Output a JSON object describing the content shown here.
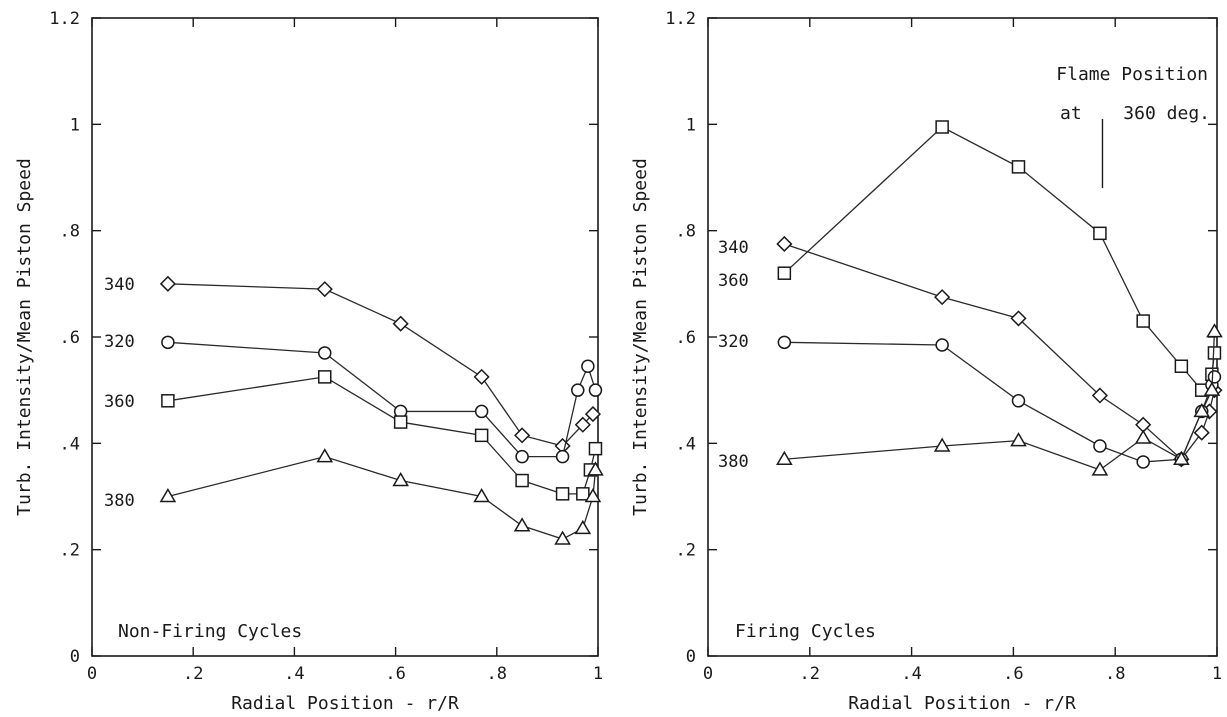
{
  "chart_data": [
    {
      "type": "line",
      "panel_label": "Non-Firing Cycles",
      "xlabel": "Radial Position - r/R",
      "ylabel": "Turb. Intensity/Mean Piston Speed",
      "xlim": [
        0,
        1
      ],
      "ylim": [
        0,
        1.2
      ],
      "x_ticks": [
        "0",
        ".2",
        ".4",
        ".6",
        ".8",
        "1"
      ],
      "y_ticks": [
        "0",
        ".2",
        ".4",
        ".6",
        ".8",
        "1",
        "1.2"
      ],
      "grid": false,
      "series": [
        {
          "name": "340",
          "marker": "diamond",
          "x": [
            0.15,
            0.46,
            0.61,
            0.77,
            0.85,
            0.93,
            0.97,
            0.99
          ],
          "y": [
            0.7,
            0.69,
            0.625,
            0.525,
            0.415,
            0.395,
            0.435,
            0.455
          ]
        },
        {
          "name": "320",
          "marker": "circle",
          "x": [
            0.15,
            0.46,
            0.61,
            0.77,
            0.85,
            0.93,
            0.96,
            0.98,
            0.995
          ],
          "y": [
            0.59,
            0.57,
            0.46,
            0.46,
            0.375,
            0.375,
            0.5,
            0.545,
            0.5
          ]
        },
        {
          "name": "360",
          "marker": "square",
          "x": [
            0.15,
            0.46,
            0.61,
            0.77,
            0.85,
            0.93,
            0.97,
            0.985,
            0.995
          ],
          "y": [
            0.48,
            0.525,
            0.44,
            0.415,
            0.33,
            0.305,
            0.305,
            0.35,
            0.39
          ]
        },
        {
          "name": "380",
          "marker": "triangle",
          "x": [
            0.15,
            0.46,
            0.61,
            0.77,
            0.85,
            0.93,
            0.97,
            0.99,
            0.995
          ],
          "y": [
            0.3,
            0.375,
            0.33,
            0.3,
            0.245,
            0.22,
            0.24,
            0.3,
            0.35
          ]
        }
      ]
    },
    {
      "type": "line",
      "panel_label": "Firing Cycles",
      "xlabel": "Radial Position - r/R",
      "ylabel": "Turb. Intensity/Mean Piston Speed",
      "xlim": [
        0,
        1
      ],
      "ylim": [
        0,
        1.2
      ],
      "x_ticks": [
        "0",
        ".2",
        ".4",
        ".6",
        ".8",
        "1"
      ],
      "y_ticks": [
        "0",
        ".2",
        ".4",
        ".6",
        ".8",
        "1",
        "1.2"
      ],
      "grid": false,
      "annotation": {
        "line1": "Flame Position",
        "line2_prefix": "at",
        "line2_value": "360 deg.",
        "x": 0.775,
        "y_from": 0.88,
        "y_to": 1.01
      },
      "series": [
        {
          "name": "340",
          "marker": "diamond",
          "x": [
            0.15,
            0.46,
            0.61,
            0.77,
            0.855,
            0.93,
            0.97,
            0.985,
            0.995
          ],
          "y": [
            0.775,
            0.675,
            0.635,
            0.49,
            0.435,
            0.37,
            0.42,
            0.46,
            0.5
          ]
        },
        {
          "name": "360",
          "marker": "square",
          "x": [
            0.15,
            0.46,
            0.61,
            0.77,
            0.855,
            0.93,
            0.97,
            0.99,
            0.995
          ],
          "y": [
            0.72,
            0.995,
            0.92,
            0.795,
            0.63,
            0.545,
            0.5,
            0.53,
            0.57
          ]
        },
        {
          "name": "320",
          "marker": "circle",
          "x": [
            0.15,
            0.46,
            0.61,
            0.77,
            0.855,
            0.93,
            0.97,
            0.99,
            0.995
          ],
          "y": [
            0.59,
            0.585,
            0.48,
            0.395,
            0.365,
            0.37,
            0.46,
            0.51,
            0.525
          ]
        },
        {
          "name": "380",
          "marker": "triangle",
          "x": [
            0.15,
            0.46,
            0.61,
            0.77,
            0.855,
            0.93,
            0.97,
            0.99,
            0.995
          ],
          "y": [
            0.37,
            0.395,
            0.405,
            0.35,
            0.41,
            0.37,
            0.46,
            0.5,
            0.61
          ]
        }
      ]
    }
  ]
}
